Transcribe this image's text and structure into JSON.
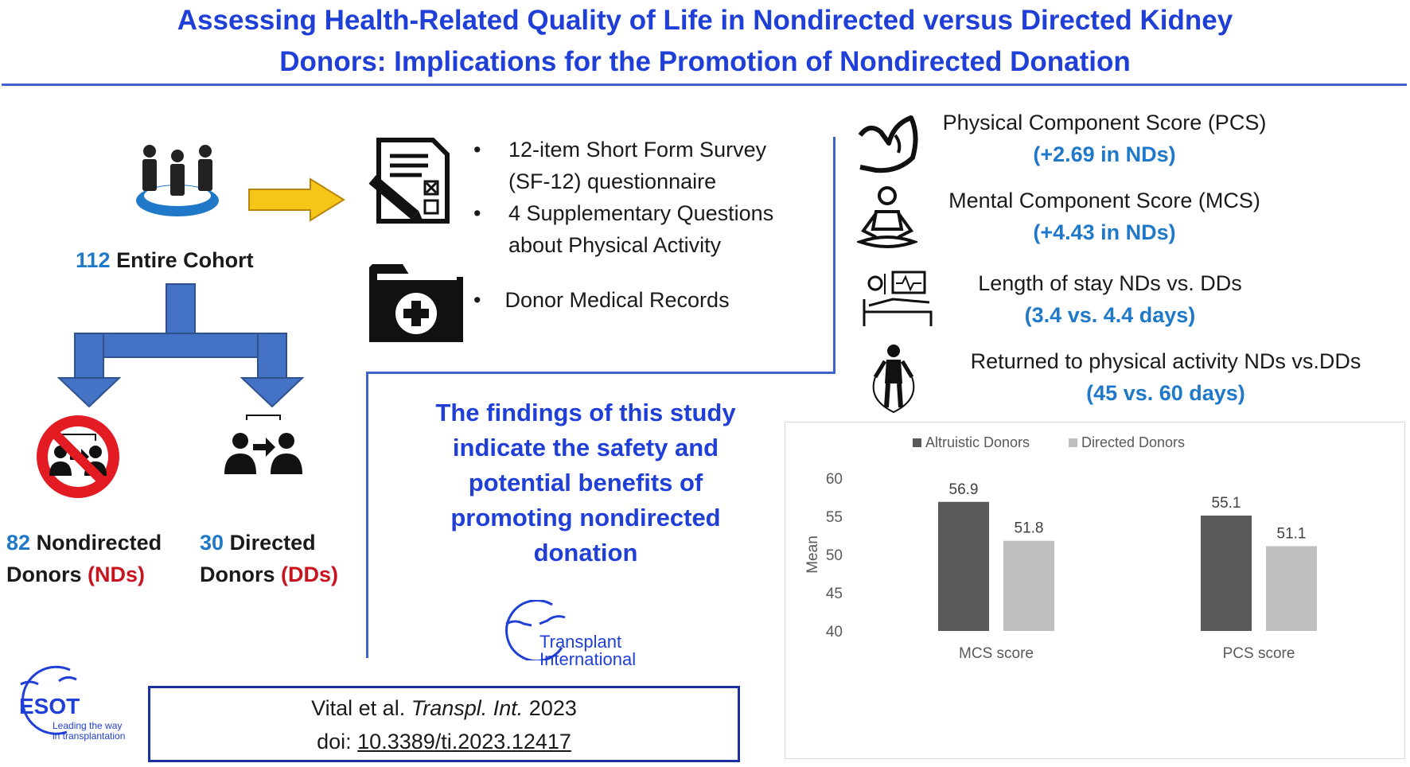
{
  "title": {
    "line1": "Assessing Health-Related Quality of Life in Nondirected versus Directed Kidney",
    "line2": "Donors: Implications for the Promotion of Nondirected Donation"
  },
  "cohort": {
    "count": "112",
    "label": "Entire Cohort"
  },
  "groups": {
    "nondirected": {
      "count": "82",
      "label": "Nondirected",
      "line2": "Donors",
      "abbr": "(NDs)"
    },
    "directed": {
      "count": "30",
      "label": "Directed",
      "line2": "Donors",
      "abbr": "(DDs)"
    }
  },
  "methods": {
    "items": [
      {
        "line1": "12-item Short Form Survey",
        "line2": "(SF-12) questionnaire"
      },
      {
        "line1": "4 Supplementary Questions",
        "line2": "about Physical Activity"
      }
    ],
    "records_bullet": "•",
    "records": "Donor Medical Records"
  },
  "results": [
    {
      "label": "Physical Component Score (PCS)",
      "value": "(+2.69 in NDs)",
      "icon": "flexed-arm-icon"
    },
    {
      "label": "Mental Component Score (MCS)",
      "value": "(+4.43 in NDs)",
      "icon": "meditation-icon"
    },
    {
      "label": "Length of stay NDs vs. DDs",
      "value": "(3.4 vs. 4.4 days)",
      "icon": "hospital-bed-icon"
    },
    {
      "label": "Returned to physical activity NDs vs.DDs",
      "value": "(45 vs. 60 days)",
      "icon": "jump-rope-icon"
    }
  ],
  "findings": {
    "lines": [
      "The findings of this study",
      "indicate the safety and",
      "potential benefits of",
      "promoting nondirected",
      "donation"
    ]
  },
  "logos": {
    "journal_line1": "Transplant",
    "journal_line2": "International",
    "esot": "ESOT",
    "esot_tag1": "Leading the way",
    "esot_tag2": "in transplantation"
  },
  "citation": {
    "authors": "Vital et al.",
    "journal": "Transpl. Int.",
    "year": "2023",
    "doi_prefix": "doi:",
    "doi": "10.3389/ti.2023.12417"
  },
  "colors": {
    "title_blue": "#1f3fd6",
    "accent_blue": "#1f78c8",
    "accent_red": "#c8141e",
    "arrow_fill": "#4472c4",
    "arrow_yellow": "#f5c518",
    "bar_dark": "#595959",
    "bar_light": "#bfbfbf"
  },
  "chart_data": {
    "type": "bar",
    "categories": [
      "MCS score",
      "PCS score"
    ],
    "series": [
      {
        "name": "Altruistic Donors",
        "values": [
          56.9,
          55.1
        ],
        "labels": [
          "56.9",
          "55.1"
        ],
        "color": "#595959"
      },
      {
        "name": "Directed Donors",
        "values": [
          51.8,
          51.1
        ],
        "labels": [
          "51.8",
          "51.1"
        ],
        "color": "#bfbfbf"
      }
    ],
    "ylabel": "Mean",
    "ylim": [
      40,
      60
    ],
    "yticks": [
      "40",
      "45",
      "50",
      "55",
      "60"
    ],
    "ytick_values": [
      40,
      45,
      50,
      55,
      60
    ],
    "legend_position": "top",
    "grid": false
  }
}
